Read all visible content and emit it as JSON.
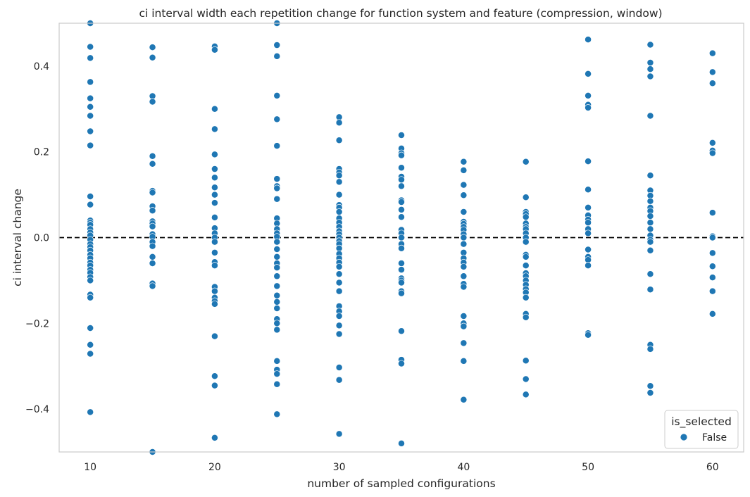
{
  "chart_data": {
    "type": "scatter",
    "title": "ci interval width each repetition change for function system and feature (compression, window)",
    "xlabel": "number of sampled configurations",
    "ylabel": "ci interval change",
    "xlim": [
      7.5,
      62.5
    ],
    "ylim": [
      -0.5,
      0.5
    ],
    "xticks": [
      10,
      20,
      30,
      40,
      50,
      60
    ],
    "xtick_labels": [
      "10",
      "20",
      "30",
      "40",
      "50",
      "60"
    ],
    "yticks": [
      -0.4,
      -0.2,
      0.0,
      0.2,
      0.4
    ],
    "ytick_labels": [
      "−0.4",
      "−0.2",
      "0.0",
      "0.2",
      "0.4"
    ],
    "grid": false,
    "reference_line": {
      "y": 0.0,
      "style": "dashed",
      "color": "#000000"
    },
    "legend": {
      "title": "is_selected",
      "entries": [
        "False"
      ],
      "placement": "bottom-right"
    },
    "colors": {
      "marker": "#1f77b4",
      "marker_edge": "#ffffff",
      "frame": "#cccccc"
    },
    "series": [
      {
        "name": "False",
        "points": [
          [
            10,
            0.5
          ],
          [
            10,
            0.445
          ],
          [
            10,
            0.419
          ],
          [
            10,
            0.363
          ],
          [
            10,
            0.325
          ],
          [
            10,
            0.305
          ],
          [
            10,
            0.284
          ],
          [
            10,
            0.248
          ],
          [
            10,
            0.215
          ],
          [
            10,
            0.096
          ],
          [
            10,
            0.077
          ],
          [
            10,
            0.04
          ],
          [
            10,
            0.035
          ],
          [
            10,
            0.03
          ],
          [
            10,
            0.02
          ],
          [
            10,
            0.012
          ],
          [
            10,
            0.005
          ],
          [
            10,
            -0.005
          ],
          [
            10,
            -0.015
          ],
          [
            10,
            -0.022
          ],
          [
            10,
            -0.03
          ],
          [
            10,
            -0.04
          ],
          [
            10,
            -0.048
          ],
          [
            10,
            -0.058
          ],
          [
            10,
            -0.065
          ],
          [
            10,
            -0.075
          ],
          [
            10,
            -0.082
          ],
          [
            10,
            -0.092
          ],
          [
            10,
            -0.1
          ],
          [
            10,
            -0.133
          ],
          [
            10,
            -0.14
          ],
          [
            10,
            -0.211
          ],
          [
            10,
            -0.25
          ],
          [
            10,
            -0.271
          ],
          [
            10,
            -0.407
          ],
          [
            15,
            0.444
          ],
          [
            15,
            0.42
          ],
          [
            15,
            0.33
          ],
          [
            15,
            0.317
          ],
          [
            15,
            0.19
          ],
          [
            15,
            0.172
          ],
          [
            15,
            0.109
          ],
          [
            15,
            0.105
          ],
          [
            15,
            0.073
          ],
          [
            15,
            0.063
          ],
          [
            15,
            0.038
          ],
          [
            15,
            0.033
          ],
          [
            15,
            0.026
          ],
          [
            15,
            0.008
          ],
          [
            15,
            0.002
          ],
          [
            15,
            -0.01
          ],
          [
            15,
            -0.02
          ],
          [
            15,
            -0.045
          ],
          [
            15,
            -0.06
          ],
          [
            15,
            -0.107
          ],
          [
            15,
            -0.113
          ],
          [
            15,
            -0.5
          ],
          [
            20,
            0.446
          ],
          [
            20,
            0.438
          ],
          [
            20,
            0.3
          ],
          [
            20,
            0.253
          ],
          [
            20,
            0.194
          ],
          [
            20,
            0.16
          ],
          [
            20,
            0.14
          ],
          [
            20,
            0.117
          ],
          [
            20,
            0.1
          ],
          [
            20,
            0.081
          ],
          [
            20,
            0.047
          ],
          [
            20,
            0.022
          ],
          [
            20,
            0.01
          ],
          [
            20,
            0.0
          ],
          [
            20,
            -0.01
          ],
          [
            20,
            -0.035
          ],
          [
            20,
            -0.057
          ],
          [
            20,
            -0.065
          ],
          [
            20,
            -0.115
          ],
          [
            20,
            -0.125
          ],
          [
            20,
            -0.14
          ],
          [
            20,
            -0.148
          ],
          [
            20,
            -0.155
          ],
          [
            20,
            -0.23
          ],
          [
            20,
            -0.323
          ],
          [
            20,
            -0.345
          ],
          [
            20,
            -0.467
          ],
          [
            25,
            0.5
          ],
          [
            25,
            0.449
          ],
          [
            25,
            0.423
          ],
          [
            25,
            0.331
          ],
          [
            25,
            0.276
          ],
          [
            25,
            0.214
          ],
          [
            25,
            0.137
          ],
          [
            25,
            0.12
          ],
          [
            25,
            0.115
          ],
          [
            25,
            0.09
          ],
          [
            25,
            0.045
          ],
          [
            25,
            0.033
          ],
          [
            25,
            0.02
          ],
          [
            25,
            0.01
          ],
          [
            25,
            0.002
          ],
          [
            25,
            -0.01
          ],
          [
            25,
            -0.027
          ],
          [
            25,
            -0.045
          ],
          [
            25,
            -0.06
          ],
          [
            25,
            -0.07
          ],
          [
            25,
            -0.09
          ],
          [
            25,
            -0.113
          ],
          [
            25,
            -0.135
          ],
          [
            25,
            -0.15
          ],
          [
            25,
            -0.165
          ],
          [
            25,
            -0.19
          ],
          [
            25,
            -0.2
          ],
          [
            25,
            -0.215
          ],
          [
            25,
            -0.288
          ],
          [
            25,
            -0.308
          ],
          [
            25,
            -0.318
          ],
          [
            25,
            -0.342
          ],
          [
            25,
            -0.412
          ],
          [
            30,
            0.281
          ],
          [
            30,
            0.268
          ],
          [
            30,
            0.227
          ],
          [
            30,
            0.16
          ],
          [
            30,
            0.152
          ],
          [
            30,
            0.145
          ],
          [
            30,
            0.13
          ],
          [
            30,
            0.1
          ],
          [
            30,
            0.076
          ],
          [
            30,
            0.07
          ],
          [
            30,
            0.06
          ],
          [
            30,
            0.045
          ],
          [
            30,
            0.035
          ],
          [
            30,
            0.025
          ],
          [
            30,
            0.015
          ],
          [
            30,
            0.008
          ],
          [
            30,
            0.0
          ],
          [
            30,
            -0.008
          ],
          [
            30,
            -0.015
          ],
          [
            30,
            -0.025
          ],
          [
            30,
            -0.038
          ],
          [
            30,
            -0.048
          ],
          [
            30,
            -0.058
          ],
          [
            30,
            -0.068
          ],
          [
            30,
            -0.085
          ],
          [
            30,
            -0.105
          ],
          [
            30,
            -0.125
          ],
          [
            30,
            -0.16
          ],
          [
            30,
            -0.172
          ],
          [
            30,
            -0.183
          ],
          [
            30,
            -0.205
          ],
          [
            30,
            -0.225
          ],
          [
            30,
            -0.303
          ],
          [
            30,
            -0.332
          ],
          [
            30,
            -0.458
          ],
          [
            35,
            0.239
          ],
          [
            35,
            0.208
          ],
          [
            35,
            0.197
          ],
          [
            35,
            0.192
          ],
          [
            35,
            0.163
          ],
          [
            35,
            0.142
          ],
          [
            35,
            0.135
          ],
          [
            35,
            0.12
          ],
          [
            35,
            0.087
          ],
          [
            35,
            0.083
          ],
          [
            35,
            0.065
          ],
          [
            35,
            0.048
          ],
          [
            35,
            0.018
          ],
          [
            35,
            0.01
          ],
          [
            35,
            0.0
          ],
          [
            35,
            -0.015
          ],
          [
            35,
            -0.025
          ],
          [
            35,
            -0.06
          ],
          [
            35,
            -0.075
          ],
          [
            35,
            -0.095
          ],
          [
            35,
            -0.1
          ],
          [
            35,
            -0.105
          ],
          [
            35,
            -0.125
          ],
          [
            35,
            -0.13
          ],
          [
            35,
            -0.218
          ],
          [
            35,
            -0.285
          ],
          [
            35,
            -0.294
          ],
          [
            35,
            -0.48
          ],
          [
            40,
            0.177
          ],
          [
            40,
            0.157
          ],
          [
            40,
            0.123
          ],
          [
            40,
            0.099
          ],
          [
            40,
            0.06
          ],
          [
            40,
            0.037
          ],
          [
            40,
            0.032
          ],
          [
            40,
            0.025
          ],
          [
            40,
            0.018
          ],
          [
            40,
            0.008
          ],
          [
            40,
            0.0
          ],
          [
            40,
            -0.015
          ],
          [
            40,
            -0.035
          ],
          [
            40,
            -0.048
          ],
          [
            40,
            -0.058
          ],
          [
            40,
            -0.068
          ],
          [
            40,
            -0.09
          ],
          [
            40,
            -0.108
          ],
          [
            40,
            -0.115
          ],
          [
            40,
            -0.183
          ],
          [
            40,
            -0.2
          ],
          [
            40,
            -0.207
          ],
          [
            40,
            -0.246
          ],
          [
            40,
            -0.288
          ],
          [
            40,
            -0.378
          ],
          [
            45,
            0.177
          ],
          [
            45,
            0.094
          ],
          [
            45,
            0.06
          ],
          [
            45,
            0.055
          ],
          [
            45,
            0.048
          ],
          [
            45,
            0.033
          ],
          [
            45,
            0.025
          ],
          [
            45,
            0.02
          ],
          [
            45,
            0.01
          ],
          [
            45,
            0.0
          ],
          [
            45,
            -0.01
          ],
          [
            45,
            -0.04
          ],
          [
            45,
            -0.045
          ],
          [
            45,
            -0.065
          ],
          [
            45,
            -0.083
          ],
          [
            45,
            -0.09
          ],
          [
            45,
            -0.1
          ],
          [
            45,
            -0.11
          ],
          [
            45,
            -0.12
          ],
          [
            45,
            -0.128
          ],
          [
            45,
            -0.14
          ],
          [
            45,
            -0.178
          ],
          [
            45,
            -0.186
          ],
          [
            45,
            -0.287
          ],
          [
            45,
            -0.33
          ],
          [
            45,
            -0.366
          ],
          [
            50,
            0.462
          ],
          [
            50,
            0.382
          ],
          [
            50,
            0.331
          ],
          [
            50,
            0.31
          ],
          [
            50,
            0.303
          ],
          [
            50,
            0.178
          ],
          [
            50,
            0.112
          ],
          [
            50,
            0.07
          ],
          [
            50,
            0.052
          ],
          [
            50,
            0.042
          ],
          [
            50,
            0.035
          ],
          [
            50,
            0.02
          ],
          [
            50,
            0.01
          ],
          [
            50,
            -0.028
          ],
          [
            50,
            -0.045
          ],
          [
            50,
            -0.052
          ],
          [
            50,
            -0.065
          ],
          [
            50,
            -0.223
          ],
          [
            50,
            -0.227
          ],
          [
            55,
            0.45
          ],
          [
            55,
            0.408
          ],
          [
            55,
            0.393
          ],
          [
            55,
            0.376
          ],
          [
            55,
            0.284
          ],
          [
            55,
            0.145
          ],
          [
            55,
            0.11
          ],
          [
            55,
            0.098
          ],
          [
            55,
            0.085
          ],
          [
            55,
            0.07
          ],
          [
            55,
            0.062
          ],
          [
            55,
            0.05
          ],
          [
            55,
            0.035
          ],
          [
            55,
            0.02
          ],
          [
            55,
            0.005
          ],
          [
            55,
            -0.005
          ],
          [
            55,
            -0.01
          ],
          [
            55,
            -0.03
          ],
          [
            55,
            -0.085
          ],
          [
            55,
            -0.121
          ],
          [
            55,
            -0.25
          ],
          [
            55,
            -0.26
          ],
          [
            55,
            -0.346
          ],
          [
            55,
            -0.362
          ],
          [
            60,
            0.43
          ],
          [
            60,
            0.386
          ],
          [
            60,
            0.36
          ],
          [
            60,
            0.221
          ],
          [
            60,
            0.203
          ],
          [
            60,
            0.197
          ],
          [
            60,
            0.058
          ],
          [
            60,
            0.003
          ],
          [
            60,
            0.0
          ],
          [
            60,
            -0.036
          ],
          [
            60,
            -0.067
          ],
          [
            60,
            -0.093
          ],
          [
            60,
            -0.125
          ],
          [
            60,
            -0.178
          ]
        ]
      }
    ]
  }
}
